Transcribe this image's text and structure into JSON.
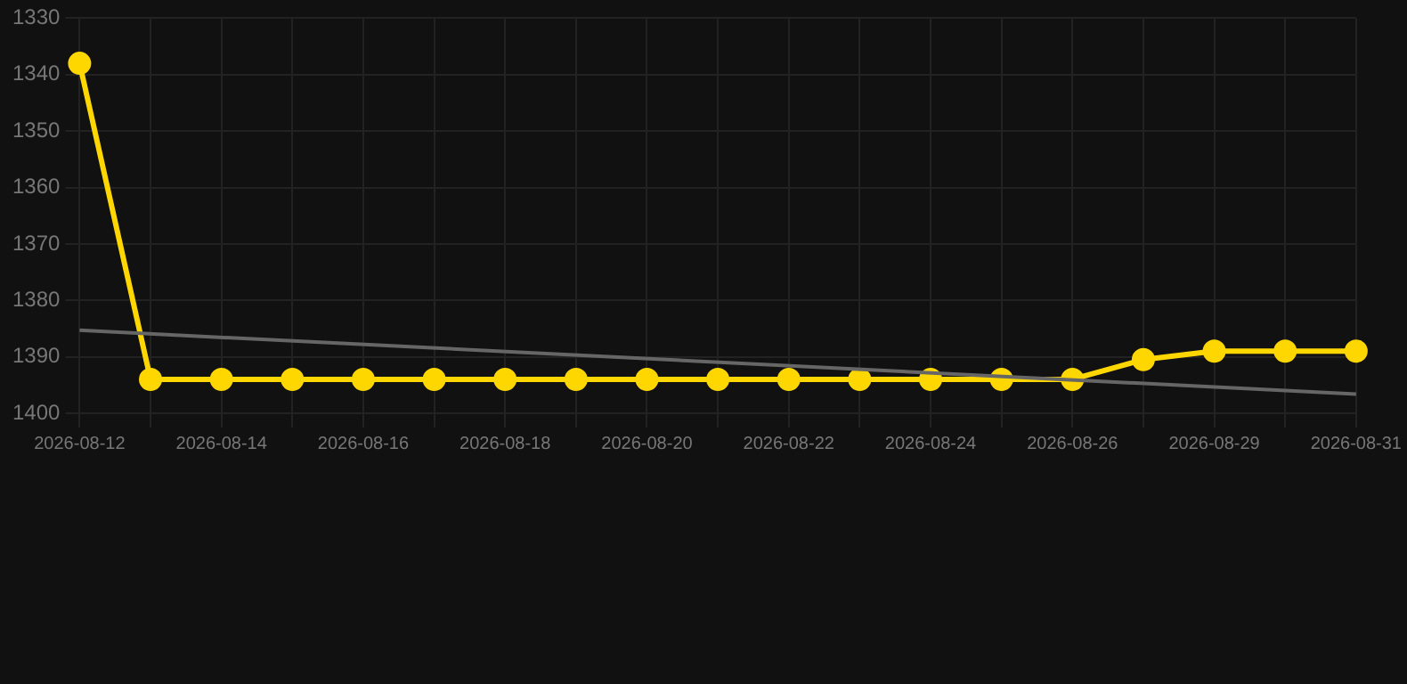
{
  "chart_data": {
    "type": "line",
    "categories": [
      "2026-08-12",
      null,
      "2026-08-14",
      null,
      "2026-08-16",
      null,
      "2026-08-18",
      null,
      "2026-08-20",
      null,
      "2026-08-22",
      null,
      "2026-08-24",
      null,
      "2026-08-26",
      null,
      "2026-08-29",
      null,
      "2026-08-31"
    ],
    "series": [
      {
        "color": "#ffd700",
        "marker": "circle",
        "values": [
          1338,
          1394,
          1394,
          1394,
          1394,
          1394,
          1394,
          1394,
          1394,
          1394,
          1394,
          1394,
          1394,
          1394,
          1394,
          1390.5,
          1389,
          1389,
          1389
        ]
      },
      {
        "type": "line",
        "color": "#666666",
        "marker": "none",
        "values": [
          1385.3,
          null,
          null,
          null,
          null,
          null,
          null,
          null,
          null,
          null,
          null,
          null,
          null,
          null,
          null,
          null,
          null,
          null,
          1396.6
        ]
      }
    ],
    "ylim": [
      1400,
      1330
    ],
    "yticks": [
      1330,
      1340,
      1350,
      1360,
      1370,
      1380,
      1390,
      1400
    ],
    "grid": true,
    "legend": false
  }
}
